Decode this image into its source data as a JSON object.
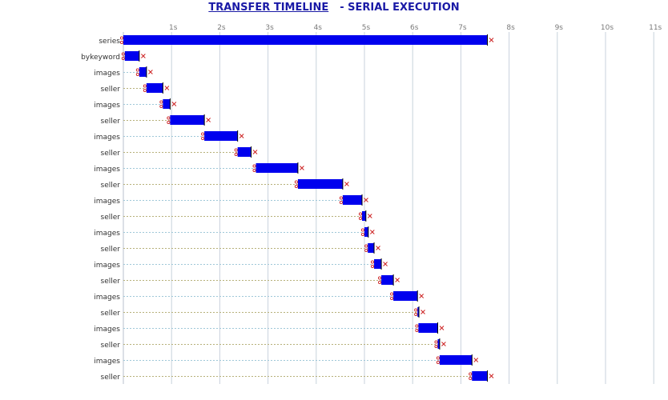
{
  "header": {
    "title": "TRANSFER TIMELINE",
    "subtitle": "- SERIAL EXECUTION"
  },
  "colors": {
    "bar": "#0000ee",
    "title": "#1a1aa6",
    "start_marker": "#cc2222",
    "end_marker": "#cc2222",
    "grid_vertical": "#c8d2dc",
    "row_line_even": "#9fc7d8",
    "row_line_odd": "#b7b07a"
  },
  "chart_data": {
    "type": "timeline",
    "title": "TRANSFER TIMELINE",
    "subtitle": "- SERIAL EXECUTION",
    "xlim": [
      0,
      11.2
    ],
    "x_ticks": [
      1,
      2,
      3,
      4,
      5,
      6,
      7,
      8,
      9,
      10,
      11
    ],
    "x_tick_labels": [
      "1s",
      "2s",
      "3s",
      "4s",
      "5s",
      "6s",
      "7s",
      "8s",
      "9s",
      "10s",
      "11s"
    ],
    "grid": true,
    "rows": [
      {
        "label": "series",
        "start": 0.0,
        "end": 7.55
      },
      {
        "label": "bykeyword",
        "start": 0.03,
        "end": 0.33
      },
      {
        "label": "images",
        "start": 0.33,
        "end": 0.48
      },
      {
        "label": "seller",
        "start": 0.48,
        "end": 0.82
      },
      {
        "label": "images",
        "start": 0.82,
        "end": 0.97
      },
      {
        "label": "seller",
        "start": 0.97,
        "end": 1.68
      },
      {
        "label": "images",
        "start": 1.68,
        "end": 2.37
      },
      {
        "label": "seller",
        "start": 2.37,
        "end": 2.65
      },
      {
        "label": "images",
        "start": 2.75,
        "end": 3.62
      },
      {
        "label": "seller",
        "start": 3.62,
        "end": 4.55
      },
      {
        "label": "images",
        "start": 4.55,
        "end": 4.95
      },
      {
        "label": "seller",
        "start": 4.95,
        "end": 5.03
      },
      {
        "label": "images",
        "start": 5.0,
        "end": 5.08
      },
      {
        "label": "seller",
        "start": 5.07,
        "end": 5.2
      },
      {
        "label": "images",
        "start": 5.2,
        "end": 5.35
      },
      {
        "label": "seller",
        "start": 5.35,
        "end": 5.6
      },
      {
        "label": "images",
        "start": 5.6,
        "end": 6.1
      },
      {
        "label": "seller",
        "start": 6.1,
        "end": 6.13
      },
      {
        "label": "images",
        "start": 6.12,
        "end": 6.52
      },
      {
        "label": "seller",
        "start": 6.52,
        "end": 6.56
      },
      {
        "label": "images",
        "start": 6.56,
        "end": 7.23
      },
      {
        "label": "seller",
        "start": 7.23,
        "end": 7.55
      }
    ]
  }
}
